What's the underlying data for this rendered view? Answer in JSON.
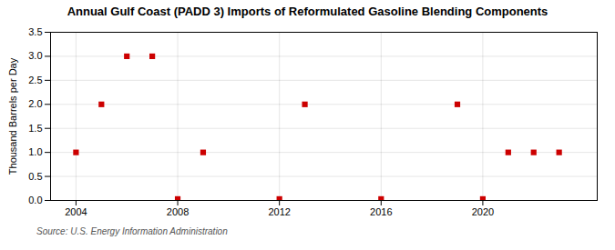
{
  "chart_data": {
    "type": "scatter",
    "title": "Annual Gulf Coast (PADD 3) Imports of Reformulated Gasoline Blending Components",
    "ylabel": "Thousand Barrels per Day",
    "source": "Source: U.S. Energy Information Administration",
    "x": [
      2004,
      2005,
      2006,
      2007,
      2009,
      2013,
      2019,
      2021,
      2022,
      2023,
      2008,
      2012,
      2016,
      2020
    ],
    "values": [
      1.0,
      2.0,
      3.0,
      3.0,
      1.0,
      2.0,
      2.0,
      1.0,
      1.0,
      1.0,
      0.03,
      0.03,
      0.03,
      0.03
    ],
    "color": "#cc0000",
    "marker": "square",
    "xlim": [
      2003.0,
      2024.5
    ],
    "ylim": [
      0.0,
      3.5
    ],
    "xticks": [
      2004,
      2008,
      2012,
      2016,
      2020
    ],
    "yticks": [
      {
        "value": 0.0,
        "label": "0.0"
      },
      0.5,
      {
        "value": 1.0,
        "label": "1.0"
      },
      1.5,
      {
        "value": 2.0,
        "label": "2.0"
      },
      2.5,
      {
        "value": 3.0,
        "label": "3.0"
      },
      3.5
    ],
    "grid": true
  }
}
